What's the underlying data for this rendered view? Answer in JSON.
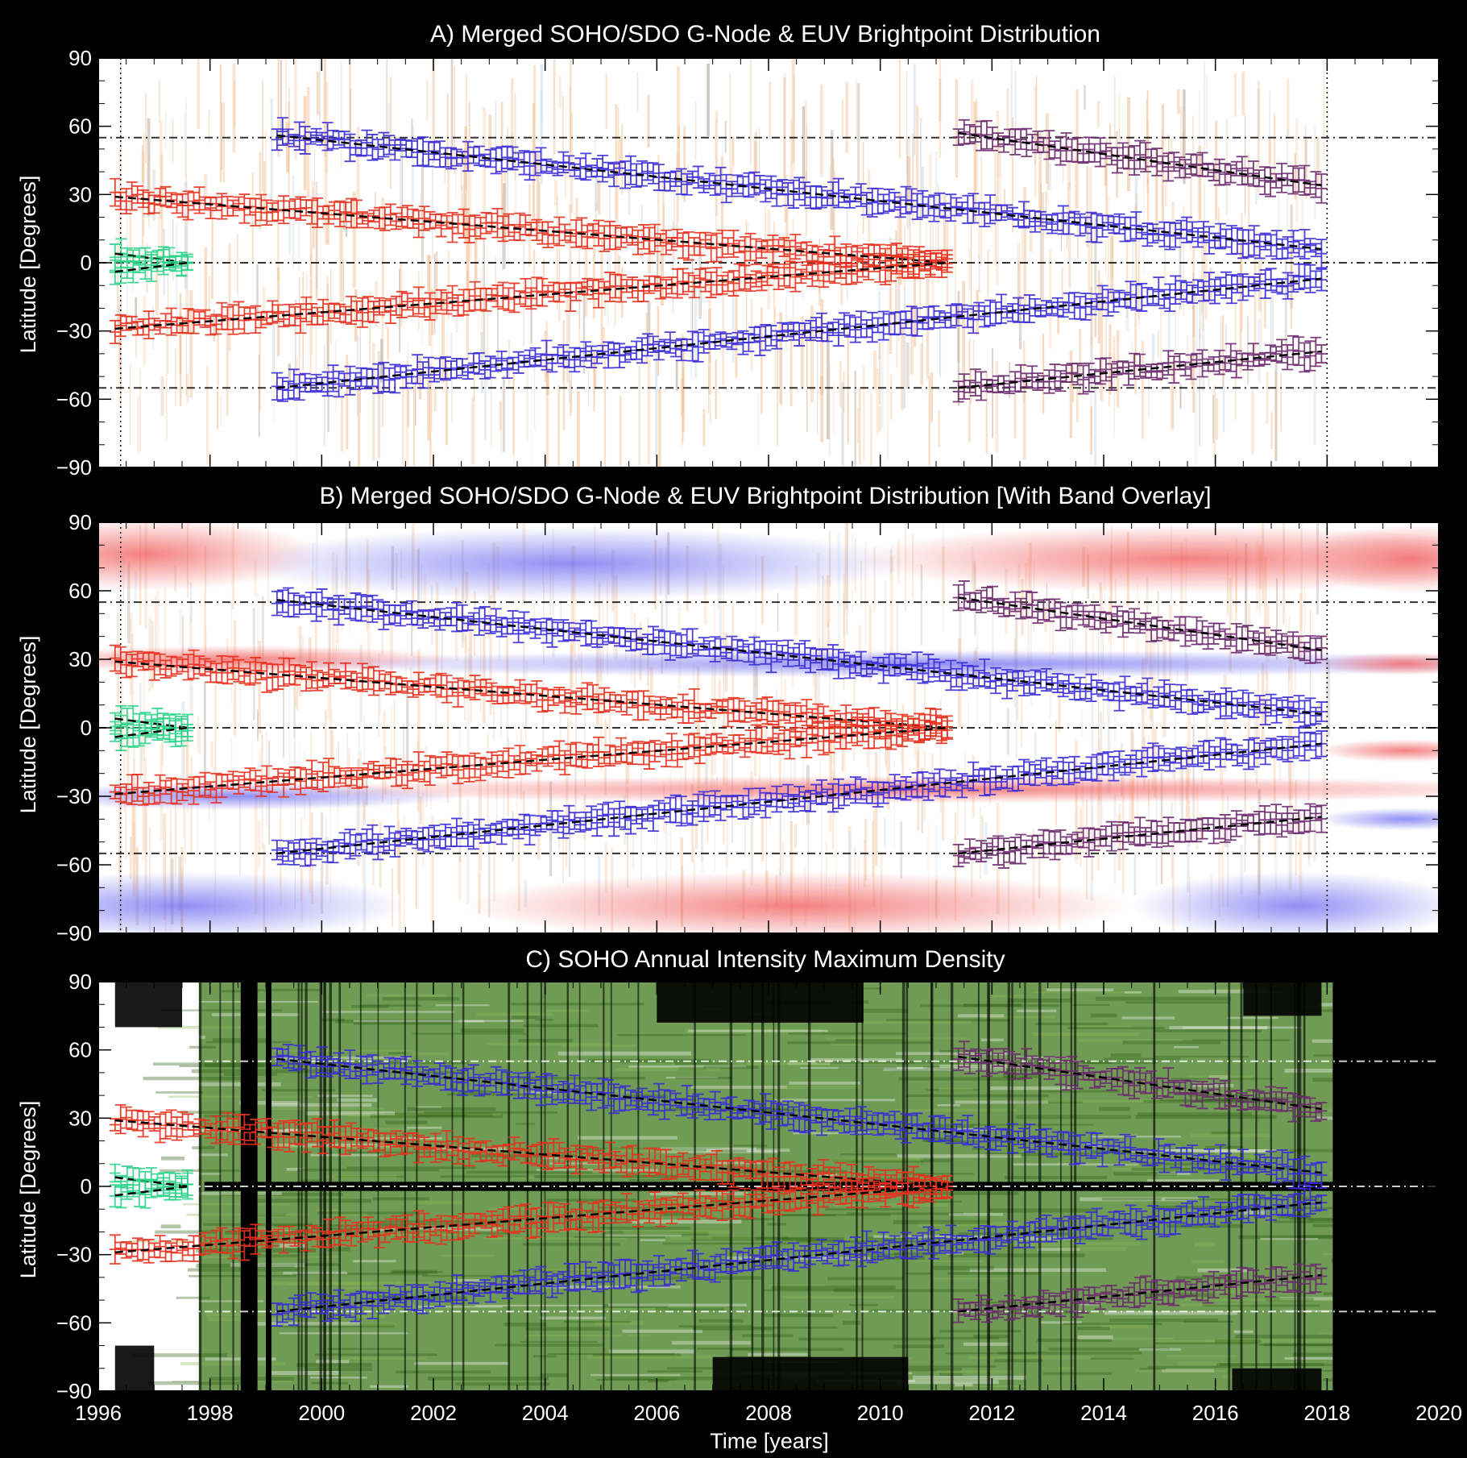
{
  "figure": {
    "xlabel": "Time [years]",
    "x_ticks": [
      1996,
      1998,
      2000,
      2002,
      2004,
      2006,
      2008,
      2010,
      2012,
      2014,
      2016,
      2018,
      2020
    ],
    "colors": {
      "north_mid_band": "#e8301e",
      "mid_band": "#3a2bd6",
      "polar_band": "#6b2a6e",
      "equator_band": "#2ed48a",
      "fit_line": "#000000",
      "reference_line": "#000000",
      "overlay_red": "#f05a5a",
      "overlay_blue": "#6f6cf0",
      "density_green": "#3f7a1c",
      "background_orange": "#e38a3c"
    }
  },
  "chart_data": [
    {
      "type": "scatter",
      "title": "A) Merged SOHO/SDO G-Node & EUV Brightpoint Distribution",
      "ylabel": "Latitude [Degrees]",
      "xlim": [
        1996,
        2020
      ],
      "ylim": [
        -90,
        90
      ],
      "y_ticks": [
        90,
        60,
        30,
        0,
        -30,
        -60,
        -90
      ],
      "background": "orange brightpoint density",
      "reference_lines": [
        55,
        0,
        -55
      ],
      "vertical_reference_lines": [
        1996.4,
        2018.0
      ],
      "series": [
        {
          "x_start": 1996.3,
          "x_end": 1997.6,
          "y_start": 4,
          "y_end": 0,
          "color_key": "equator_band"
        },
        {
          "x_start": 1996.3,
          "x_end": 1997.6,
          "y_start": -4,
          "y_end": 0,
          "color_key": "equator_band"
        },
        {
          "x_start": 1996.3,
          "x_end": 2011.2,
          "y_start": 29,
          "y_end": 0,
          "color_key": "north_mid_band"
        },
        {
          "x_start": 1996.3,
          "x_end": 2011.2,
          "y_start": -29,
          "y_end": 0,
          "color_key": "north_mid_band"
        },
        {
          "x_start": 1999.2,
          "x_end": 2017.9,
          "y_start": 56,
          "y_end": 6,
          "color_key": "mid_band"
        },
        {
          "x_start": 1999.2,
          "x_end": 2017.9,
          "y_start": -55,
          "y_end": -7,
          "color_key": "mid_band"
        },
        {
          "x_start": 2011.4,
          "x_end": 2017.9,
          "y_start": 57,
          "y_end": 34,
          "color_key": "polar_band"
        },
        {
          "x_start": 2011.4,
          "x_end": 2017.9,
          "y_start": -55,
          "y_end": -39,
          "color_key": "polar_band"
        }
      ]
    },
    {
      "type": "scatter",
      "title": "B) Merged SOHO/SDO G-Node & EUV Brightpoint Distribution [With Band Overlay]",
      "ylabel": "Latitude [Degrees]",
      "xlim": [
        1996,
        2020
      ],
      "ylim": [
        -90,
        90
      ],
      "y_ticks": [
        90,
        60,
        30,
        0,
        -30,
        -60,
        -90
      ],
      "background": "orange brightpoint density with red/blue band overlay",
      "reference_lines": [
        55,
        0,
        -55
      ],
      "vertical_reference_lines": [
        1996.4,
        2018.0
      ],
      "series": [
        {
          "x_start": 1996.3,
          "x_end": 1997.6,
          "y_start": 4,
          "y_end": 0,
          "color_key": "equator_band"
        },
        {
          "x_start": 1996.3,
          "x_end": 1997.6,
          "y_start": -4,
          "y_end": 0,
          "color_key": "equator_band"
        },
        {
          "x_start": 1996.3,
          "x_end": 2011.2,
          "y_start": 29,
          "y_end": 0,
          "color_key": "north_mid_band"
        },
        {
          "x_start": 1996.3,
          "x_end": 2011.2,
          "y_start": -29,
          "y_end": 0,
          "color_key": "north_mid_band"
        },
        {
          "x_start": 1999.2,
          "x_end": 2017.9,
          "y_start": 56,
          "y_end": 6,
          "color_key": "mid_band"
        },
        {
          "x_start": 1999.2,
          "x_end": 2017.9,
          "y_start": -55,
          "y_end": -7,
          "color_key": "mid_band"
        },
        {
          "x_start": 2011.4,
          "x_end": 2017.9,
          "y_start": 57,
          "y_end": 34,
          "color_key": "polar_band"
        },
        {
          "x_start": 2011.4,
          "x_end": 2017.9,
          "y_start": -55,
          "y_end": -39,
          "color_key": "polar_band"
        }
      ]
    },
    {
      "type": "scatter",
      "title": "C) SOHO Annual Intensity Maximum Density",
      "ylabel": "Latitude [Degrees]",
      "xlim": [
        1996,
        2020
      ],
      "ylim": [
        -90,
        90
      ],
      "y_ticks": [
        90,
        60,
        30,
        0,
        -30,
        -60,
        -90
      ],
      "background": "green annual intensity maximum density",
      "reference_lines": [
        55,
        0,
        -55
      ],
      "vertical_reference_lines": [],
      "series": [
        {
          "x_start": 1996.3,
          "x_end": 1997.6,
          "y_start": 4,
          "y_end": 0,
          "color_key": "equator_band"
        },
        {
          "x_start": 1996.3,
          "x_end": 1997.6,
          "y_start": -4,
          "y_end": 0,
          "color_key": "equator_band"
        },
        {
          "x_start": 1996.3,
          "x_end": 2011.2,
          "y_start": 29,
          "y_end": 0,
          "color_key": "north_mid_band"
        },
        {
          "x_start": 1996.3,
          "x_end": 2011.2,
          "y_start": -29,
          "y_end": 0,
          "color_key": "north_mid_band"
        },
        {
          "x_start": 1999.2,
          "x_end": 2017.9,
          "y_start": 56,
          "y_end": 6,
          "color_key": "mid_band"
        },
        {
          "x_start": 1999.2,
          "x_end": 2017.9,
          "y_start": -55,
          "y_end": -7,
          "color_key": "mid_band"
        },
        {
          "x_start": 2011.4,
          "x_end": 2017.9,
          "y_start": 57,
          "y_end": 34,
          "color_key": "polar_band"
        },
        {
          "x_start": 2011.4,
          "x_end": 2017.9,
          "y_start": -55,
          "y_end": -39,
          "color_key": "polar_band"
        }
      ]
    }
  ]
}
